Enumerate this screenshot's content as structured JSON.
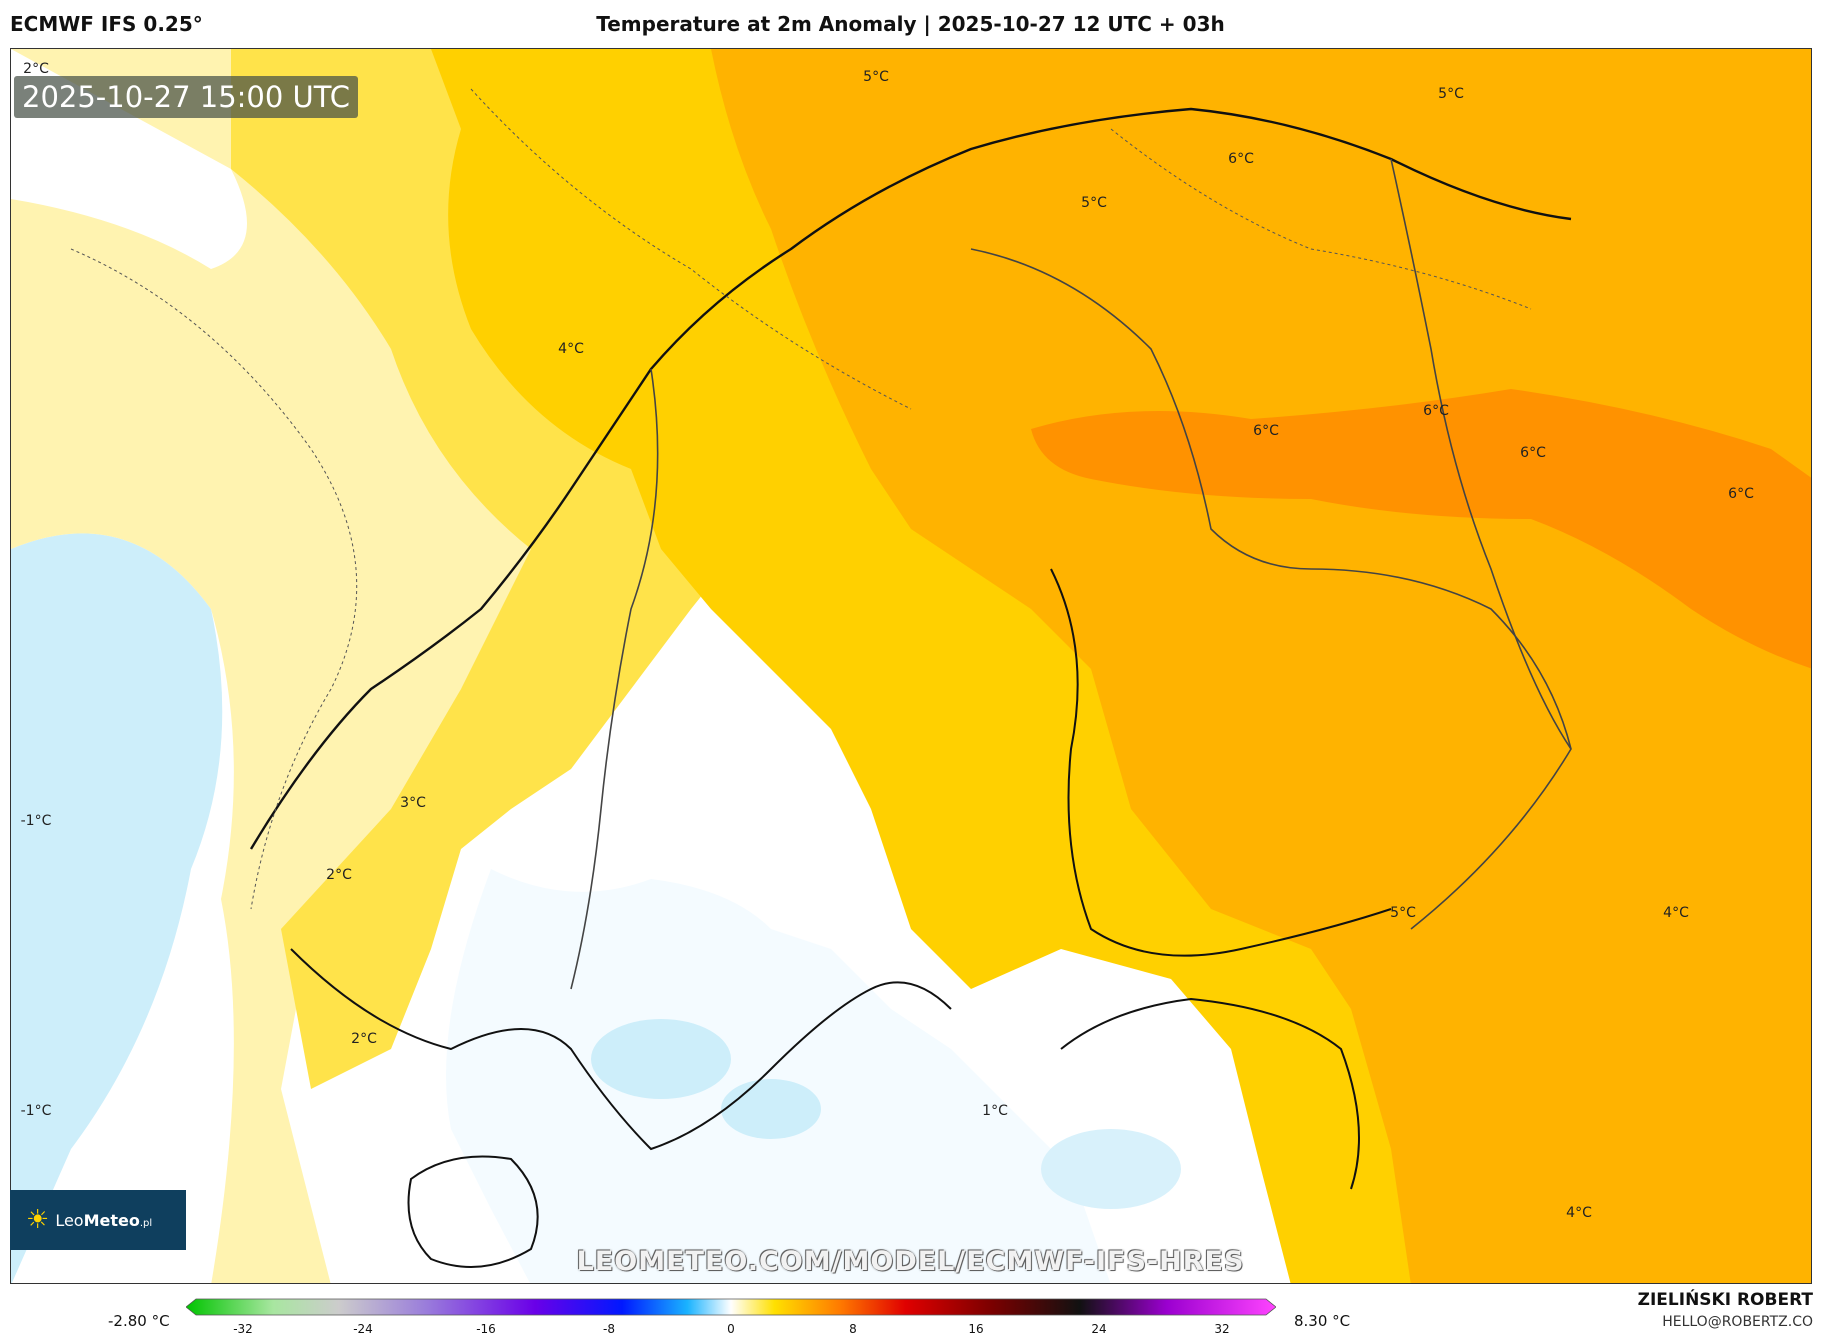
{
  "header": {
    "model": "ECMWF IFS 0.25°",
    "title": "Temperature at 2m Anomaly | 2025-10-27 12 UTC + 03h"
  },
  "map": {
    "valid_time": "2025-10-27 15:00 UTC",
    "watermark": "LEOMETEO.COM/MODEL/ECMWF-IFS-HRES",
    "labels": [
      {
        "id": "l1",
        "text": "2°C"
      },
      {
        "id": "l2",
        "text": "5°C"
      },
      {
        "id": "l3",
        "text": "5°C"
      },
      {
        "id": "l4",
        "text": "6°C"
      },
      {
        "id": "l5",
        "text": "5°C"
      },
      {
        "id": "l6",
        "text": "4°C"
      },
      {
        "id": "l7",
        "text": "6°C"
      },
      {
        "id": "l8",
        "text": "6°C"
      },
      {
        "id": "l9",
        "text": "6°C"
      },
      {
        "id": "l10",
        "text": "6°C"
      },
      {
        "id": "l11",
        "text": "-1°C"
      },
      {
        "id": "l12",
        "text": "3°C"
      },
      {
        "id": "l13",
        "text": "2°C"
      },
      {
        "id": "l14",
        "text": "5°C"
      },
      {
        "id": "l15",
        "text": "4°C"
      },
      {
        "id": "l16",
        "text": "2°C"
      },
      {
        "id": "l17",
        "text": "-1°C"
      },
      {
        "id": "l18",
        "text": "1°C"
      },
      {
        "id": "l19",
        "text": "4°C"
      }
    ],
    "colors": {
      "cold": "#cdeefa",
      "neutral": "#ffffff",
      "pale": "#fff3b0",
      "yellow": "#ffe34a",
      "gold": "#ffd000",
      "orange": "#ffb300",
      "deep_orange": "#ff8c00",
      "coast": "#111111",
      "border": "#444444"
    }
  },
  "brand": {
    "icon": "sun-icon",
    "name_regular": "Leo",
    "name_bold": "Meteo",
    "suffix": ".pl"
  },
  "scale": {
    "min_label": "-2.80 °C",
    "max_label": "8.30 °C",
    "ticks": [
      "-32",
      "-24",
      "-16",
      "-8",
      "0",
      "8",
      "16",
      "24",
      "32"
    ]
  },
  "credit": {
    "name": "ZIELIŃSKI ROBERT",
    "email": "HELLO@ROBERTZ.CO"
  }
}
